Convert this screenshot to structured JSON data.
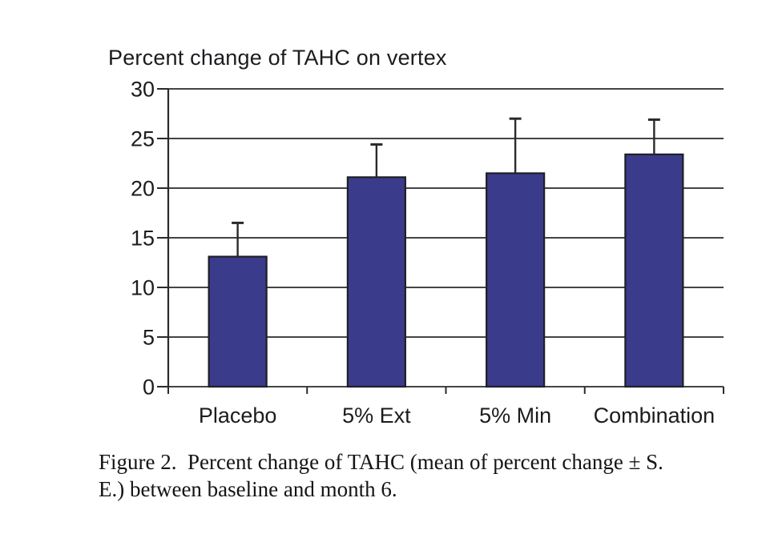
{
  "figure": {
    "caption_line1": "Figure 2.  Percent change of TAHC (mean of percent change ± S.",
    "caption_line2": "E.) between baseline and month 6."
  },
  "chart_data": {
    "type": "bar",
    "title": "Percent change of TAHC on vertex",
    "categories": [
      "Placebo",
      "5% Ext",
      "5% Min",
      "Combination"
    ],
    "values": [
      13.1,
      21.1,
      21.5,
      23.4
    ],
    "errors_upper": [
      3.4,
      3.3,
      5.5,
      3.5
    ],
    "error_style": "upper-only-with-cap",
    "xlabel": "",
    "ylabel": "",
    "ylim": [
      0,
      30
    ],
    "ytick_step": 5,
    "ytick_labels": [
      "0",
      "5",
      "10",
      "15",
      "20",
      "25",
      "30"
    ],
    "grid": true,
    "legend": "none",
    "colors": {
      "bar_fill": "#3B3B8C",
      "bar_border": "#1f1f26",
      "axis_line": "#2a2a2e",
      "gridline": "#2a2a2e",
      "error_bar": "#2a2a2e",
      "text": "#1c1c20",
      "background": "#ffffff"
    }
  }
}
